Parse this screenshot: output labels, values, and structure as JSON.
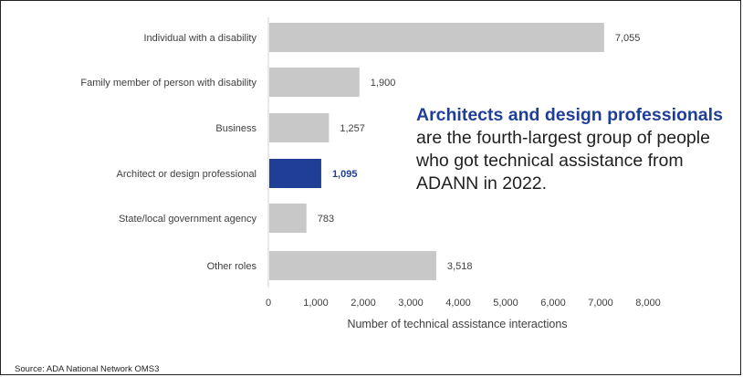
{
  "chart_data": {
    "type": "bar",
    "orientation": "horizontal",
    "categories": [
      "Individual with a disability",
      "Family member of person with disability",
      "Business",
      "Architect or design professional",
      "State/local government agency",
      "Other roles"
    ],
    "values": [
      7055,
      1900,
      1257,
      1095,
      783,
      3518
    ],
    "value_labels": [
      "7,055",
      "1,900",
      "1,257",
      "1,095",
      "783",
      "3,518"
    ],
    "highlight_index": 3,
    "colors": {
      "bar": "#c8c8c8",
      "highlight": "#1f3e96",
      "text": "#404040"
    },
    "xlim": [
      0,
      8000
    ],
    "x_ticks": [
      0,
      1000,
      2000,
      3000,
      4000,
      5000,
      6000,
      7000,
      8000
    ],
    "x_tick_labels": [
      "0",
      "1,000",
      "2,000",
      "3,000",
      "4,000",
      "5,000",
      "6,000",
      "7,000",
      "8,000"
    ],
    "xlabel": "Number of technical assistance interactions",
    "ylabel": "",
    "title": "",
    "grid": false,
    "legend": "none"
  },
  "annotation": {
    "highlight": "Architects and design professionals",
    "rest": "are the fourth-largest group of people who got technical assistance from ADANN in 2022."
  },
  "source": "Source: ADA National Network OMS3"
}
